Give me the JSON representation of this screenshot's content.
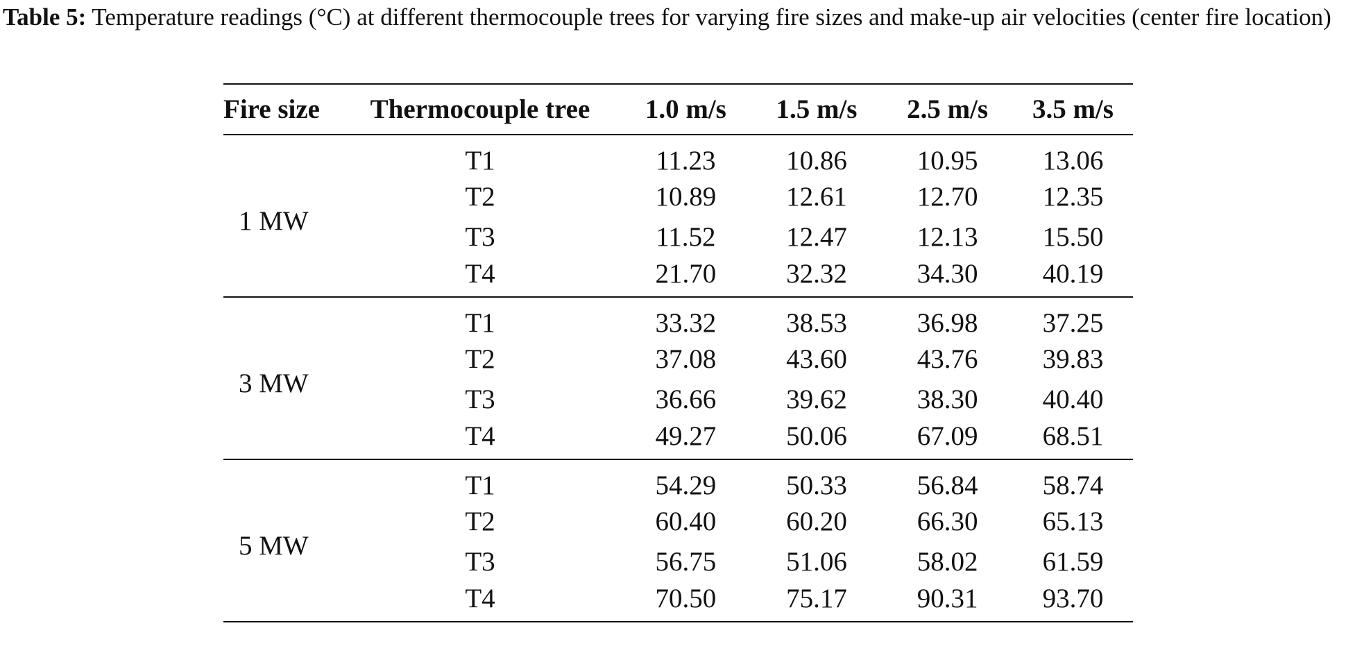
{
  "caption": {
    "label": "Table 5:",
    "text": "Temperature readings (°C) at different thermocouple trees for varying fire sizes and make-up air velocities (center fire location)"
  },
  "table": {
    "headers": {
      "fire_size": "Fire size",
      "tree": "Thermocouple tree",
      "v1": "1.0 m/s",
      "v2": "1.5 m/s",
      "v3": "2.5 m/s",
      "v4": "3.5 m/s"
    },
    "groups": [
      {
        "fire_size": "1 MW",
        "rows": [
          {
            "tree": "T1",
            "values": [
              "11.23",
              "10.86",
              "10.95",
              "13.06"
            ]
          },
          {
            "tree": "T2",
            "values": [
              "10.89",
              "12.61",
              "12.70",
              "12.35"
            ]
          },
          {
            "tree": "T3",
            "values": [
              "11.52",
              "12.47",
              "12.13",
              "15.50"
            ]
          },
          {
            "tree": "T4",
            "values": [
              "21.70",
              "32.32",
              "34.30",
              "40.19"
            ]
          }
        ]
      },
      {
        "fire_size": "3 MW",
        "rows": [
          {
            "tree": "T1",
            "values": [
              "33.32",
              "38.53",
              "36.98",
              "37.25"
            ]
          },
          {
            "tree": "T2",
            "values": [
              "37.08",
              "43.60",
              "43.76",
              "39.83"
            ]
          },
          {
            "tree": "T3",
            "values": [
              "36.66",
              "39.62",
              "38.30",
              "40.40"
            ]
          },
          {
            "tree": "T4",
            "values": [
              "49.27",
              "50.06",
              "67.09",
              "68.51"
            ]
          }
        ]
      },
      {
        "fire_size": "5 MW",
        "rows": [
          {
            "tree": "T1",
            "values": [
              "54.29",
              "50.33",
              "56.84",
              "58.74"
            ]
          },
          {
            "tree": "T2",
            "values": [
              "60.40",
              "60.20",
              "66.30",
              "65.13"
            ]
          },
          {
            "tree": "T3",
            "values": [
              "56.75",
              "51.06",
              "58.02",
              "61.59"
            ]
          },
          {
            "tree": "T4",
            "values": [
              "70.50",
              "75.17",
              "90.31",
              "93.70"
            ]
          }
        ]
      }
    ]
  }
}
